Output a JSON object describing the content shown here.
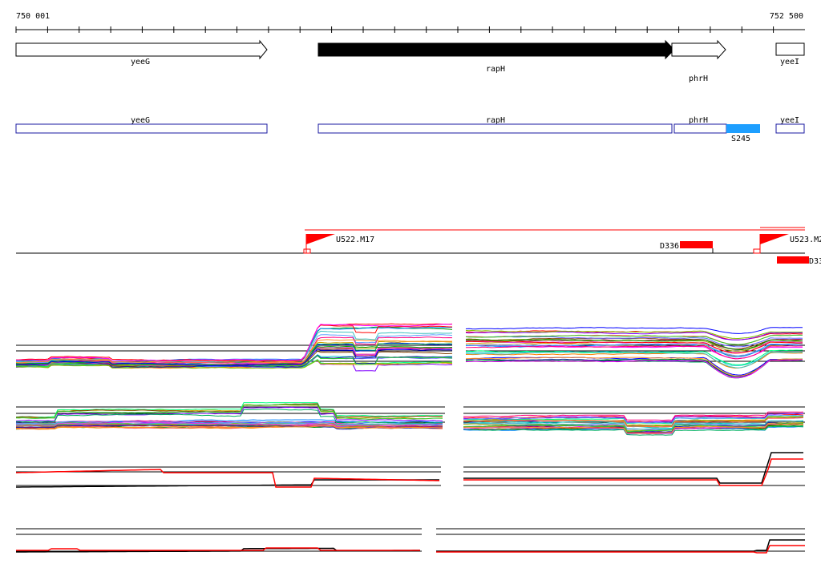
{
  "coordinates": {
    "start": "750 001",
    "end": "752 500"
  },
  "genes": [
    {
      "name": "yeeG",
      "fill": "#ffffff"
    },
    {
      "name": "rapH",
      "fill": "#000000"
    },
    {
      "name": "phrH",
      "fill": "#ffffff"
    },
    {
      "name": "yeeI",
      "fill": "#ffffff"
    }
  ],
  "annotations": [
    {
      "name": "yeeG"
    },
    {
      "name": "rapH"
    },
    {
      "name": "phrH"
    },
    {
      "name": "yeeI"
    },
    {
      "name": "S245",
      "color": "#1e9fff"
    }
  ],
  "promoters": [
    {
      "name": "U522.M17"
    },
    {
      "name": "U523.M2"
    }
  ],
  "deletions": [
    {
      "name": "D336",
      "color": "#ff0000"
    },
    {
      "name": "D33",
      "color": "#ff0000"
    }
  ],
  "colors": {
    "gene_outline": "#000000",
    "annotation_outline": "#1a1aa0",
    "promoter": "#ff0000",
    "baseline": "#000000",
    "highlight_trace": "#ff0000"
  }
}
